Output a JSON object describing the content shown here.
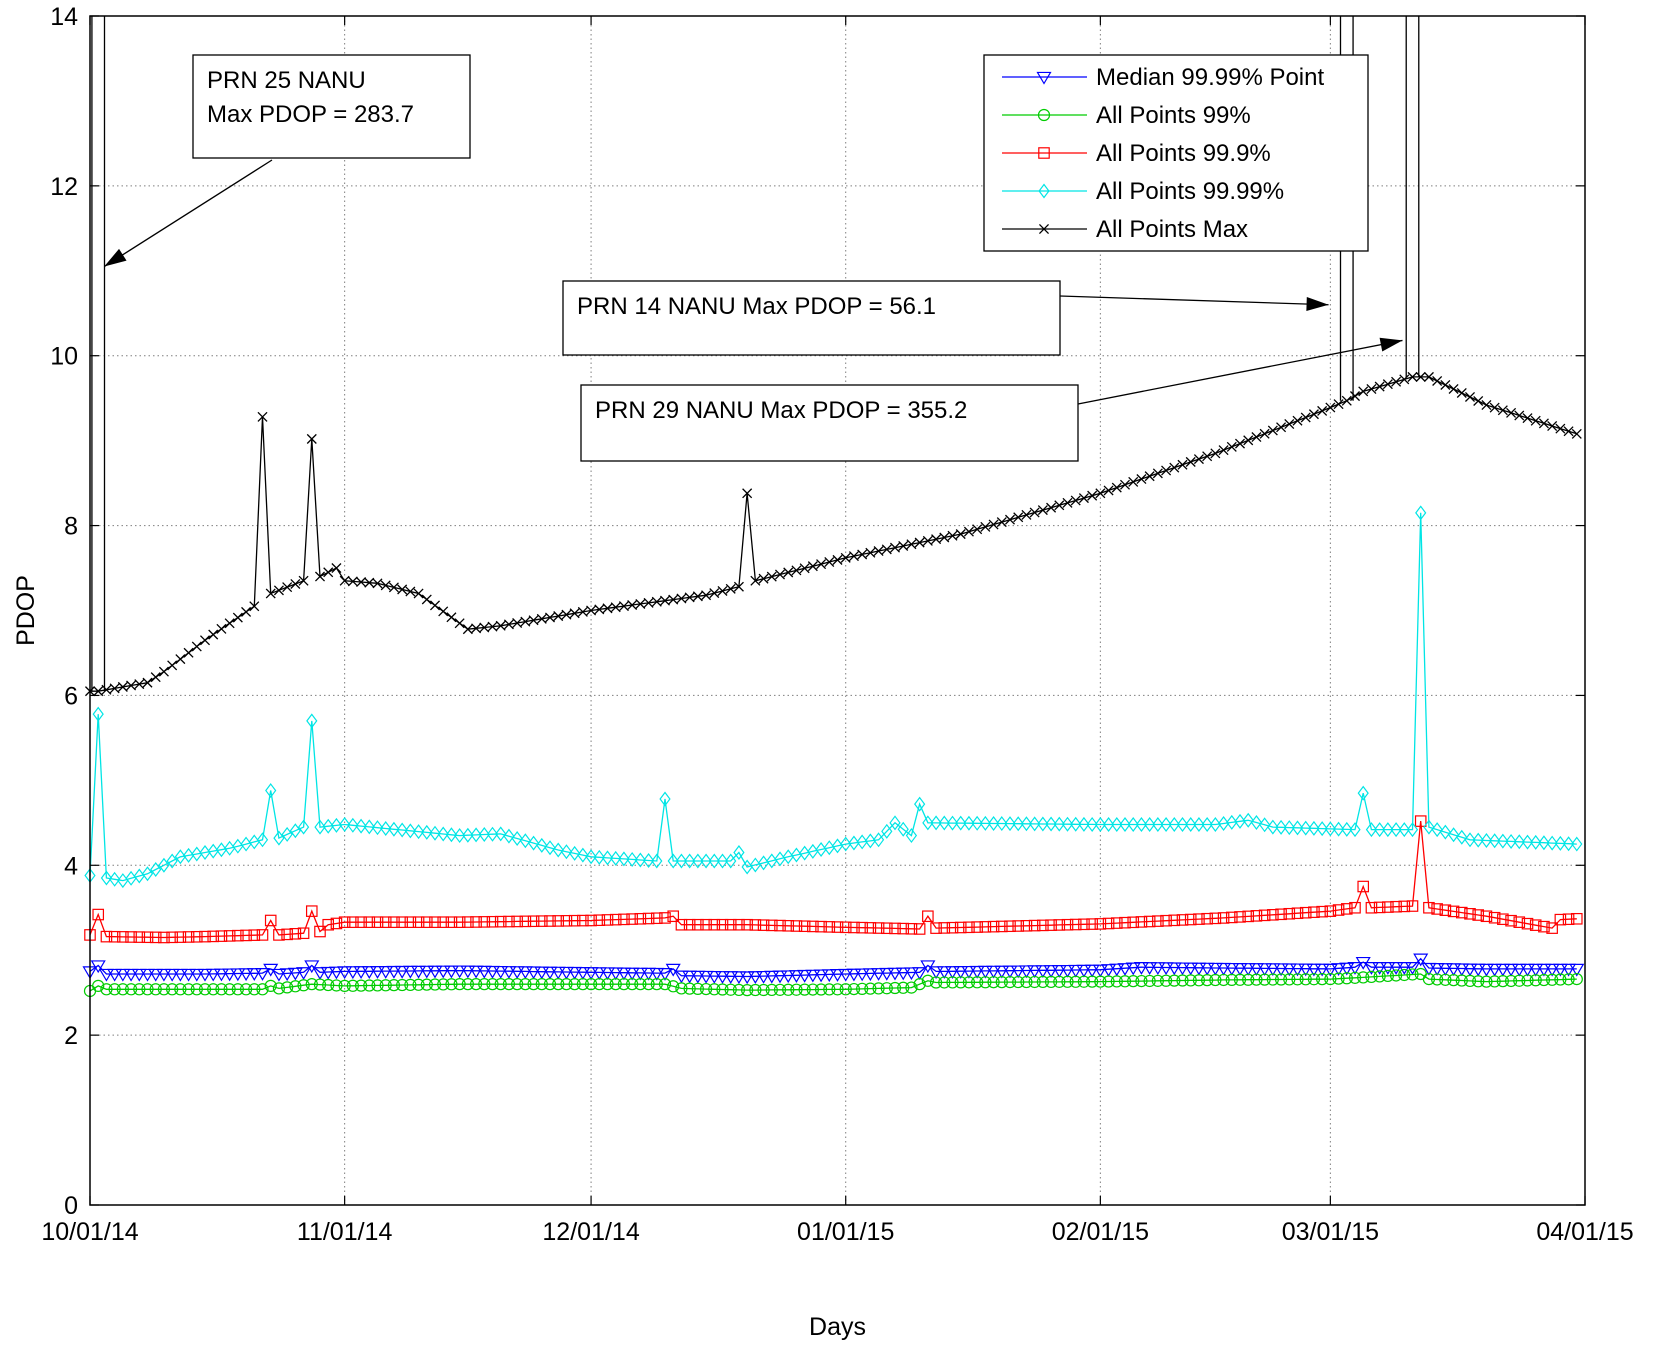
{
  "chart_data": {
    "type": "line",
    "title": "",
    "xlabel": "Days",
    "ylabel": "PDOP",
    "ylim": [
      0,
      14
    ],
    "xlim": [
      "10/01/14",
      "04/01/15"
    ],
    "xticks": [
      "10/01/14",
      "11/01/14",
      "12/01/14",
      "01/01/15",
      "02/01/15",
      "03/01/15",
      "04/01/15"
    ],
    "yticks": [
      "0",
      "2",
      "4",
      "6",
      "8",
      "10",
      "12",
      "14"
    ],
    "grid": true,
    "legend_position": "top-right",
    "x_unit": "day",
    "series": [
      {
        "name": "Median 99.99% Point",
        "color": "#0000ff",
        "marker": "triangle-down",
        "points": [
          [
            "10/01/14",
            2.75
          ],
          [
            "10/02/14",
            2.82
          ],
          [
            "10/03/14",
            2.72
          ],
          [
            "10/15/14",
            2.72
          ],
          [
            "10/22/14",
            2.73
          ],
          [
            "10/23/14",
            2.78
          ],
          [
            "10/24/14",
            2.72
          ],
          [
            "10/27/14",
            2.74
          ],
          [
            "10/28/14",
            2.82
          ],
          [
            "10/29/14",
            2.74
          ],
          [
            "11/01/14",
            2.75
          ],
          [
            "11/15/14",
            2.76
          ],
          [
            "12/01/14",
            2.74
          ],
          [
            "12/10/14",
            2.73
          ],
          [
            "12/11/14",
            2.78
          ],
          [
            "12/12/14",
            2.7
          ],
          [
            "12/20/14",
            2.69
          ],
          [
            "01/01/15",
            2.72
          ],
          [
            "01/10/15",
            2.74
          ],
          [
            "01/11/15",
            2.82
          ],
          [
            "01/12/15",
            2.75
          ],
          [
            "02/01/15",
            2.77
          ],
          [
            "02/06/15",
            2.8
          ],
          [
            "02/16/15",
            2.79
          ],
          [
            "03/01/15",
            2.78
          ],
          [
            "03/04/15",
            2.8
          ],
          [
            "03/05/15",
            2.86
          ],
          [
            "03/06/15",
            2.8
          ],
          [
            "03/11/15",
            2.8
          ],
          [
            "03/12/15",
            2.9
          ],
          [
            "03/13/15",
            2.79
          ],
          [
            "03/20/15",
            2.78
          ],
          [
            "03/31/15",
            2.78
          ]
        ]
      },
      {
        "name": "All Points 99%",
        "color": "#00cc00",
        "marker": "circle",
        "points": [
          [
            "10/01/14",
            2.52
          ],
          [
            "10/02/14",
            2.58
          ],
          [
            "10/03/14",
            2.54
          ],
          [
            "10/15/14",
            2.54
          ],
          [
            "10/22/14",
            2.54
          ],
          [
            "10/23/14",
            2.58
          ],
          [
            "10/24/14",
            2.55
          ],
          [
            "10/28/14",
            2.6
          ],
          [
            "11/01/14",
            2.58
          ],
          [
            "11/15/14",
            2.6
          ],
          [
            "12/01/14",
            2.6
          ],
          [
            "12/10/14",
            2.6
          ],
          [
            "12/12/14",
            2.55
          ],
          [
            "12/20/14",
            2.53
          ],
          [
            "01/01/15",
            2.54
          ],
          [
            "01/09/15",
            2.56
          ],
          [
            "01/10/15",
            2.6
          ],
          [
            "01/11/15",
            2.64
          ],
          [
            "01/12/15",
            2.62
          ],
          [
            "02/01/15",
            2.63
          ],
          [
            "02/16/15",
            2.65
          ],
          [
            "03/01/15",
            2.66
          ],
          [
            "03/05/15",
            2.68
          ],
          [
            "03/12/15",
            2.72
          ],
          [
            "03/13/15",
            2.66
          ],
          [
            "03/20/15",
            2.63
          ],
          [
            "03/31/15",
            2.66
          ]
        ]
      },
      {
        "name": "All Points 99.9%",
        "color": "#ff0000",
        "marker": "square",
        "points": [
          [
            "10/01/14",
            3.18
          ],
          [
            "10/02/14",
            3.42
          ],
          [
            "10/03/14",
            3.16
          ],
          [
            "10/10/14",
            3.15
          ],
          [
            "10/15/14",
            3.16
          ],
          [
            "10/22/14",
            3.18
          ],
          [
            "10/23/14",
            3.35
          ],
          [
            "10/24/14",
            3.18
          ],
          [
            "10/27/14",
            3.2
          ],
          [
            "10/28/14",
            3.46
          ],
          [
            "10/29/14",
            3.22
          ],
          [
            "10/30/14",
            3.3
          ],
          [
            "11/01/14",
            3.33
          ],
          [
            "11/15/14",
            3.33
          ],
          [
            "12/01/14",
            3.35
          ],
          [
            "12/10/14",
            3.38
          ],
          [
            "12/11/14",
            3.4
          ],
          [
            "12/12/14",
            3.3
          ],
          [
            "12/20/14",
            3.3
          ],
          [
            "01/01/15",
            3.27
          ],
          [
            "01/10/15",
            3.25
          ],
          [
            "01/11/15",
            3.4
          ],
          [
            "01/12/15",
            3.26
          ],
          [
            "02/01/15",
            3.31
          ],
          [
            "02/16/15",
            3.38
          ],
          [
            "03/01/15",
            3.46
          ],
          [
            "03/04/15",
            3.5
          ],
          [
            "03/05/15",
            3.75
          ],
          [
            "03/06/15",
            3.5
          ],
          [
            "03/11/15",
            3.52
          ],
          [
            "03/12/15",
            4.52
          ],
          [
            "03/13/15",
            3.5
          ],
          [
            "03/20/15",
            3.4
          ],
          [
            "03/28/15",
            3.26
          ],
          [
            "03/29/15",
            3.36
          ],
          [
            "03/31/15",
            3.37
          ]
        ]
      },
      {
        "name": "All Points 99.99%",
        "color": "#00e5e5",
        "marker": "diamond",
        "points": [
          [
            "10/01/14",
            3.88
          ],
          [
            "10/02/14",
            5.78
          ],
          [
            "10/03/14",
            3.85
          ],
          [
            "10/05/14",
            3.82
          ],
          [
            "10/08/14",
            3.9
          ],
          [
            "10/12/14",
            4.1
          ],
          [
            "10/18/14",
            4.2
          ],
          [
            "10/22/14",
            4.3
          ],
          [
            "10/23/14",
            4.88
          ],
          [
            "10/24/14",
            4.32
          ],
          [
            "10/27/14",
            4.45
          ],
          [
            "10/28/14",
            5.7
          ],
          [
            "10/29/14",
            4.45
          ],
          [
            "11/01/14",
            4.48
          ],
          [
            "11/15/14",
            4.35
          ],
          [
            "11/20/14",
            4.37
          ],
          [
            "11/27/14",
            4.18
          ],
          [
            "12/01/14",
            4.1
          ],
          [
            "12/09/14",
            4.05
          ],
          [
            "12/10/14",
            4.78
          ],
          [
            "12/11/14",
            4.05
          ],
          [
            "12/18/14",
            4.05
          ],
          [
            "12/19/14",
            4.15
          ],
          [
            "12/20/14",
            3.98
          ],
          [
            "12/25/14",
            4.1
          ],
          [
            "01/01/15",
            4.25
          ],
          [
            "01/05/15",
            4.3
          ],
          [
            "01/07/15",
            4.5
          ],
          [
            "01/09/15",
            4.35
          ],
          [
            "01/10/15",
            4.72
          ],
          [
            "01/11/15",
            4.5
          ],
          [
            "02/01/15",
            4.48
          ],
          [
            "02/15/15",
            4.48
          ],
          [
            "02/19/15",
            4.53
          ],
          [
            "02/22/15",
            4.45
          ],
          [
            "03/04/15",
            4.42
          ],
          [
            "03/05/15",
            4.85
          ],
          [
            "03/06/15",
            4.42
          ],
          [
            "03/11/15",
            4.42
          ],
          [
            "03/12/15",
            8.15
          ],
          [
            "03/13/15",
            4.45
          ],
          [
            "03/18/15",
            4.3
          ],
          [
            "03/31/15",
            4.25
          ]
        ]
      },
      {
        "name": "All Points Max",
        "color": "#000000",
        "marker": "x",
        "points": [
          [
            "10/01/14",
            6.05
          ],
          [
            "10/02/14",
            6.05
          ],
          [
            "10/08/14",
            6.15
          ],
          [
            "10/10/14",
            6.28
          ],
          [
            "10/15/14",
            6.65
          ],
          [
            "10/21/14",
            7.05
          ],
          [
            "10/22/14",
            9.28
          ],
          [
            "10/23/14",
            7.2
          ],
          [
            "10/27/14",
            7.35
          ],
          [
            "10/28/14",
            9.02
          ],
          [
            "10/29/14",
            7.4
          ],
          [
            "10/31/14",
            7.5
          ],
          [
            "11/01/14",
            7.35
          ],
          [
            "11/05/14",
            7.32
          ],
          [
            "11/10/14",
            7.2
          ],
          [
            "11/16/14",
            6.78
          ],
          [
            "11/20/14",
            6.82
          ],
          [
            "12/01/14",
            7.0
          ],
          [
            "12/15/14",
            7.18
          ],
          [
            "12/19/14",
            7.28
          ],
          [
            "12/20/14",
            8.38
          ],
          [
            "12/21/14",
            7.35
          ],
          [
            "01/01/15",
            7.62
          ],
          [
            "01/15/15",
            7.9
          ],
          [
            "02/01/15",
            8.38
          ],
          [
            "02/15/15",
            8.85
          ],
          [
            "02/28/15",
            9.35
          ],
          [
            "03/03/15",
            9.47
          ],
          [
            "03/05/15",
            9.58
          ],
          [
            "03/11/15",
            9.75
          ],
          [
            "03/13/15",
            9.75
          ],
          [
            "03/20/15",
            9.42
          ],
          [
            "03/31/15",
            9.08
          ]
        ]
      }
    ],
    "spikes": [
      {
        "date": "10/02/14",
        "width_days": 0.8,
        "label": "PRN 25 NANU Max PDOP = 283.7"
      },
      {
        "date": "03/03/15",
        "width_days": 0.8,
        "label": "PRN 14 NANU Max PDOP = 56.1"
      },
      {
        "date": "03/11/15",
        "width_days": 0.8,
        "label": "PRN 29 NANU Max PDOP = 355.2"
      }
    ],
    "annotations": [
      {
        "lines": [
          "PRN 25 NANU",
          "Max PDOP = 283.7"
        ],
        "arrow_to": [
          "10/02/14",
          11.05
        ]
      },
      {
        "lines": [
          "PRN 14 NANU Max PDOP = 56.1"
        ],
        "arrow_to": [
          "03/02/15",
          10.6
        ]
      },
      {
        "lines": [
          "PRN 29 NANU Max PDOP = 355.2"
        ],
        "arrow_to": [
          "03/11/15",
          10.18
        ]
      }
    ]
  }
}
